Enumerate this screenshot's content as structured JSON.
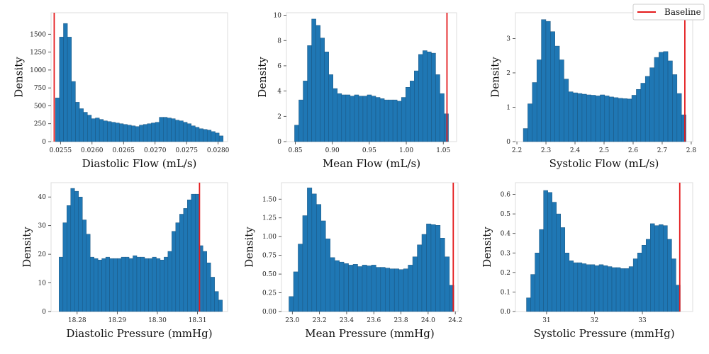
{
  "figure": {
    "legend": {
      "label": "Baseline",
      "color": "#e41a1c",
      "placement": "top-right"
    }
  },
  "chart_data": [
    {
      "type": "histogram",
      "xlabel": "Diastolic Flow (mL/s)",
      "ylabel": "Density",
      "xlim": [
        0.02535,
        0.02815
      ],
      "ylim": [
        0,
        1800
      ],
      "xticks": [
        0.0255,
        0.026,
        0.0265,
        0.027,
        0.0275,
        0.028
      ],
      "xtick_labels": [
        "0.0255",
        "0.0260",
        "0.0265",
        "0.0270",
        "0.0275",
        "0.0280"
      ],
      "yticks": [
        0,
        250,
        500,
        750,
        1000,
        1250,
        1500
      ],
      "ytick_labels": [
        "0",
        "250",
        "500",
        "750",
        "1000",
        "1250",
        "1500"
      ],
      "bin_start": 0.02542,
      "bin_end": 0.02808,
      "values": [
        610,
        1460,
        1650,
        1460,
        840,
        550,
        460,
        410,
        370,
        320,
        330,
        310,
        290,
        280,
        270,
        260,
        250,
        240,
        230,
        220,
        210,
        230,
        240,
        250,
        260,
        270,
        340,
        340,
        330,
        320,
        300,
        290,
        270,
        250,
        220,
        200,
        180,
        170,
        160,
        140,
        120,
        80
      ],
      "baseline": 0.0254,
      "bar_color": "#1f77b4"
    },
    {
      "type": "histogram",
      "xlabel": "Mean Flow (mL/s)",
      "ylabel": "Density",
      "xlim": [
        0.838,
        1.068
      ],
      "ylim": [
        0,
        10.2
      ],
      "xticks": [
        0.85,
        0.9,
        0.95,
        1.0,
        1.05
      ],
      "xtick_labels": [
        "0.85",
        "0.90",
        "0.95",
        "1.00",
        "1.05"
      ],
      "yticks": [
        0,
        2,
        4,
        6,
        8,
        10
      ],
      "ytick_labels": [
        "0",
        "2",
        "4",
        "6",
        "8",
        "10"
      ],
      "bin_start": 0.849,
      "bin_end": 1.057,
      "values": [
        1.3,
        3.3,
        4.8,
        7.6,
        9.7,
        9.2,
        8.2,
        7.1,
        5.3,
        4.2,
        3.8,
        3.7,
        3.7,
        3.6,
        3.7,
        3.6,
        3.6,
        3.7,
        3.6,
        3.5,
        3.4,
        3.3,
        3.3,
        3.3,
        3.2,
        3.5,
        4.3,
        4.8,
        5.6,
        6.9,
        7.2,
        7.1,
        7.0,
        5.3,
        3.8,
        2.2
      ],
      "baseline": 1.055,
      "bar_color": "#1f77b4"
    },
    {
      "type": "histogram",
      "xlabel": "Systolic Flow (mL/s)",
      "ylabel": "Density",
      "xlim": [
        2.195,
        2.805
      ],
      "ylim": [
        0,
        3.75
      ],
      "xticks": [
        2.2,
        2.3,
        2.4,
        2.5,
        2.6,
        2.7,
        2.8
      ],
      "xtick_labels": [
        "2.2",
        "2.3",
        "2.4",
        "2.5",
        "2.6",
        "2.7",
        "2.8"
      ],
      "yticks": [
        0,
        1,
        2,
        3
      ],
      "ytick_labels": [
        "0",
        "1",
        "2",
        "3"
      ],
      "bin_start": 2.222,
      "bin_end": 2.782,
      "values": [
        0.38,
        1.1,
        1.72,
        2.38,
        3.55,
        3.5,
        3.2,
        2.78,
        2.38,
        1.82,
        1.45,
        1.42,
        1.4,
        1.38,
        1.36,
        1.35,
        1.33,
        1.36,
        1.33,
        1.3,
        1.28,
        1.26,
        1.25,
        1.24,
        1.35,
        1.52,
        1.7,
        1.9,
        2.15,
        2.45,
        2.6,
        2.62,
        2.35,
        1.95,
        1.4,
        0.78
      ],
      "baseline": 2.778,
      "bar_color": "#1f77b4"
    },
    {
      "type": "histogram",
      "xlabel": "Diastolic Pressure (mmHg)",
      "ylabel": "Density",
      "xlim": [
        18.2735,
        18.3175
      ],
      "ylim": [
        0,
        45
      ],
      "xticks": [
        18.28,
        18.29,
        18.3,
        18.31
      ],
      "xtick_labels": [
        "18.28",
        "18.29",
        "18.30",
        "18.31"
      ],
      "yticks": [
        0,
        10,
        20,
        30,
        40
      ],
      "ytick_labels": [
        "0",
        "10",
        "20",
        "30",
        "40"
      ],
      "bin_start": 18.2755,
      "bin_end": 18.3162,
      "values": [
        19,
        31,
        37,
        43,
        42,
        40,
        32,
        27,
        19,
        18.5,
        18,
        18.5,
        19,
        18.5,
        18.5,
        18.5,
        19,
        19,
        18.5,
        19.5,
        19,
        19,
        18.5,
        18.5,
        19,
        18.5,
        18,
        19,
        21,
        28,
        31,
        34,
        36,
        39,
        41,
        41,
        23,
        21,
        17,
        12,
        7,
        4
      ],
      "baseline": 18.3105,
      "bar_color": "#1f77b4"
    },
    {
      "type": "histogram",
      "xlabel": "Mean Pressure (mmHg)",
      "ylabel": "Density",
      "xlim": [
        22.92,
        24.22
      ],
      "ylim": [
        0,
        1.72
      ],
      "xticks": [
        23.0,
        23.2,
        23.4,
        23.6,
        23.8,
        24.0,
        24.2
      ],
      "xtick_labels": [
        "23.0",
        "23.2",
        "23.4",
        "23.6",
        "23.8",
        "24.0",
        "24.2"
      ],
      "yticks": [
        0,
        0.25,
        0.5,
        0.75,
        1.0,
        1.25,
        1.5
      ],
      "ytick_labels": [
        "0.00",
        "0.25",
        "0.50",
        "0.75",
        "1.00",
        "1.25",
        "1.50"
      ],
      "bin_start": 22.975,
      "bin_end": 24.19,
      "values": [
        0.2,
        0.53,
        0.9,
        1.28,
        1.65,
        1.57,
        1.43,
        1.21,
        0.97,
        0.72,
        0.68,
        0.66,
        0.64,
        0.62,
        0.63,
        0.6,
        0.62,
        0.61,
        0.62,
        0.59,
        0.59,
        0.58,
        0.57,
        0.57,
        0.56,
        0.57,
        0.62,
        0.73,
        0.89,
        1.03,
        1.17,
        1.16,
        1.15,
        0.98,
        0.73,
        0.35
      ],
      "baseline": 24.185,
      "bar_color": "#1f77b4"
    },
    {
      "type": "histogram",
      "xlabel": "Systolic Pressure (mmHg)",
      "ylabel": "Density",
      "xlim": [
        30.35,
        34.05
      ],
      "ylim": [
        0,
        0.66
      ],
      "xticks": [
        31,
        32,
        33
      ],
      "xtick_labels": [
        "31",
        "32",
        "33"
      ],
      "yticks": [
        0,
        0.1,
        0.2,
        0.3,
        0.4,
        0.5,
        0.6
      ],
      "ytick_labels": [
        "0.0",
        "0.1",
        "0.2",
        "0.3",
        "0.4",
        "0.5",
        "0.6"
      ],
      "bin_start": 30.58,
      "bin_end": 33.79,
      "values": [
        0.07,
        0.19,
        0.3,
        0.42,
        0.62,
        0.61,
        0.56,
        0.5,
        0.43,
        0.3,
        0.26,
        0.25,
        0.25,
        0.245,
        0.24,
        0.24,
        0.235,
        0.24,
        0.235,
        0.23,
        0.225,
        0.225,
        0.22,
        0.22,
        0.23,
        0.27,
        0.3,
        0.34,
        0.37,
        0.45,
        0.44,
        0.445,
        0.44,
        0.37,
        0.27,
        0.135
      ],
      "baseline": 33.78,
      "bar_color": "#1f77b4"
    }
  ]
}
